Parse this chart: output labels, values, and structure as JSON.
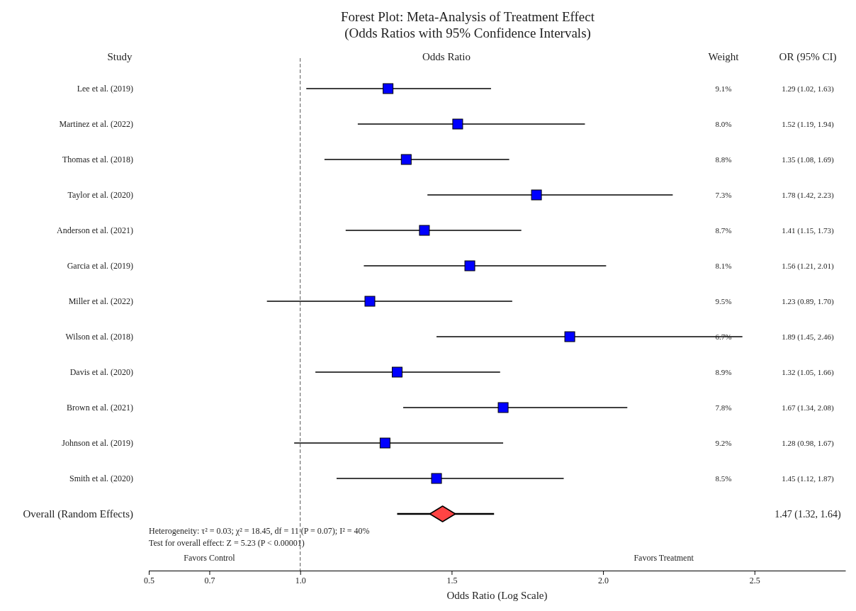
{
  "chart_data": {
    "type": "scatter",
    "orientation": "horizontal",
    "title": "Forest Plot: Meta-Analysis of Treatment Effect",
    "subtitle": "(Odds Ratios with 95% Confidence Intervals)",
    "xlabel": "Odds Ratio (Log Scale)",
    "categories": [
      "Lee et al. (2019)",
      "Martinez et al. (2022)",
      "Thomas et al. (2018)",
      "Taylor et al. (2020)",
      "Anderson et al. (2021)",
      "Garcia et al. (2019)",
      "Miller et al. (2022)",
      "Wilson et al. (2018)",
      "Davis et al. (2020)",
      "Brown et al. (2021)",
      "Johnson et al. (2019)",
      "Smith et al. (2020)",
      "Overall (Random Effects)"
    ],
    "series": [
      {
        "color": "#0000ff",
        "marker": "square",
        "values": [
          1.29,
          1.52,
          1.35,
          1.78,
          1.41,
          1.56,
          1.23,
          1.89,
          1.32,
          1.67,
          1.28,
          1.45,
          null
        ],
        "errors": [
          [
            1.02,
            1.63
          ],
          [
            1.19,
            1.94
          ],
          [
            1.08,
            1.69
          ],
          [
            1.42,
            2.23
          ],
          [
            1.15,
            1.73
          ],
          [
            1.21,
            2.01
          ],
          [
            0.89,
            1.7
          ],
          [
            1.45,
            2.46
          ],
          [
            1.05,
            1.66
          ],
          [
            1.34,
            2.08
          ],
          [
            0.98,
            1.67
          ],
          [
            1.12,
            1.87
          ],
          null
        ]
      },
      {
        "color": "#ff4444",
        "marker": "diamond",
        "values": [
          null,
          null,
          null,
          null,
          null,
          null,
          null,
          null,
          null,
          null,
          null,
          null,
          1.47
        ],
        "errors": [
          null,
          null,
          null,
          null,
          null,
          null,
          null,
          null,
          null,
          null,
          null,
          null,
          [
            1.32,
            1.64
          ]
        ]
      }
    ],
    "xlim": [
      0.5,
      2.8
    ],
    "xticks": [
      {
        "value": 0.5,
        "label": "0.5"
      },
      {
        "value": 0.7,
        "label": "0.7"
      },
      {
        "value": 1,
        "label": "1.0"
      },
      {
        "value": 1.5,
        "label": "1.5"
      },
      {
        "value": 2,
        "label": "2.0"
      },
      {
        "value": 2.5,
        "label": "2.5"
      }
    ],
    "ref_lines": [
      {
        "axis": "x",
        "value": 1,
        "color": "#555555",
        "line_style": "dashed"
      }
    ],
    "grid": false,
    "annotations": [
      "Study",
      "Odds Ratio",
      "Weight",
      "OR (95% CI)",
      "Favors Control",
      "Favors Treatment",
      "Heterogeneity: τ² = 0.03; χ² = 18.45, df = 11 (P = 0.07); I² = 40%",
      "Test for overall effect: Z = 5.23 (P < 0.00001)",
      "9.1%",
      "8.0%",
      "8.8%",
      "7.3%",
      "8.7%",
      "8.1%",
      "9.5%",
      "6.7%",
      "8.9%",
      "7.8%",
      "9.2%",
      "8.5%",
      "1.29 (1.02, 1.63)",
      "1.52 (1.19, 1.94)",
      "1.35 (1.08, 1.69)",
      "1.78 (1.42, 2.23)",
      "1.41 (1.15, 1.73)",
      "1.56 (1.21, 2.01)",
      "1.23 (0.89, 1.70)",
      "1.89 (1.45, 2.46)",
      "1.32 (1.05, 1.66)",
      "1.67 (1.34, 2.08)",
      "1.28 (0.98, 1.67)",
      "1.45 (1.12, 1.87)",
      "1.47 (1.32, 1.64)"
    ]
  }
}
